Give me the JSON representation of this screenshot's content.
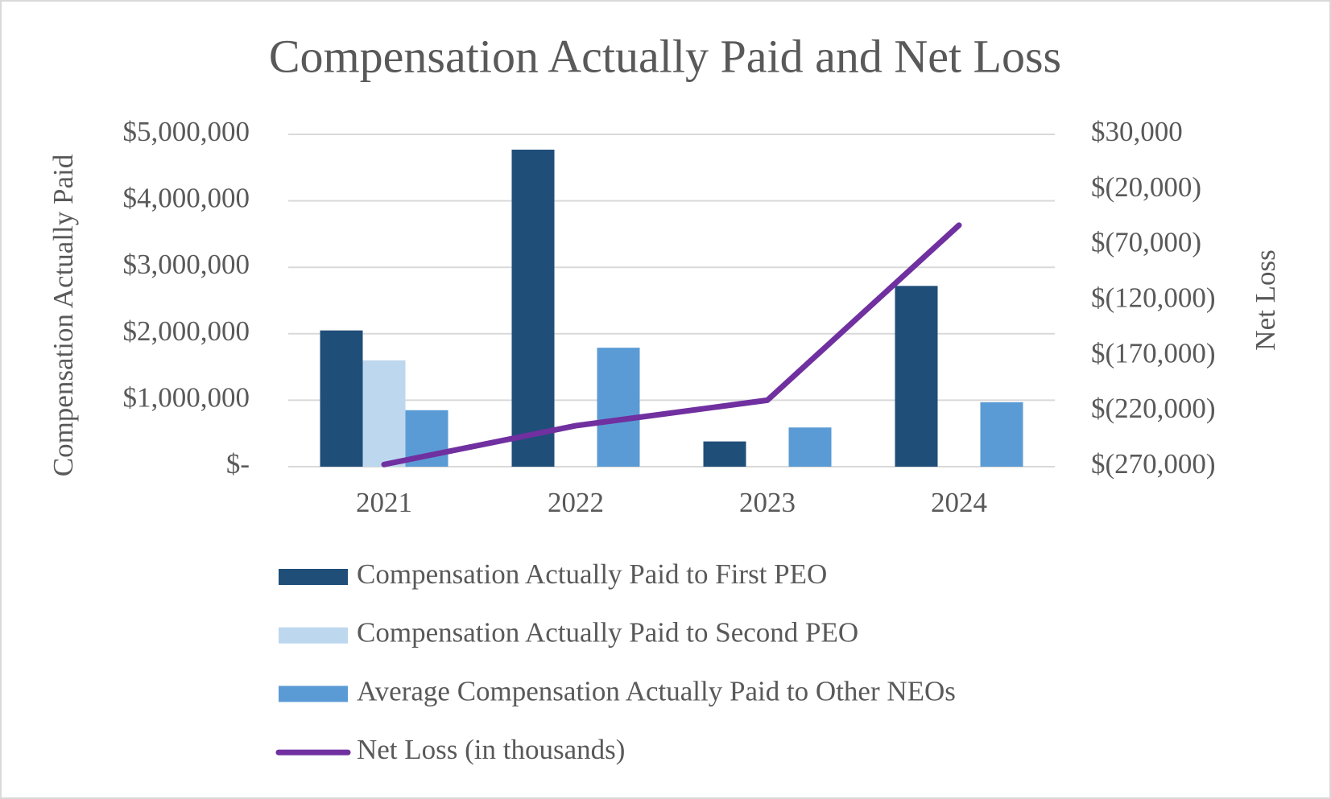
{
  "chart_data": {
    "type": "bar",
    "title": "Compensation Actually Paid and Net Loss",
    "ylabel": "Compensation Actually Paid",
    "y2label": "Net Loss",
    "categories": [
      "2021",
      "2022",
      "2023",
      "2024"
    ],
    "series": [
      {
        "name": "Compensation Actually Paid to First PEO",
        "color": "#1f4e79",
        "type": "bar",
        "values": [
          2050000,
          4770000,
          380000,
          2720000
        ]
      },
      {
        "name": "Compensation Actually Paid to Second PEO",
        "color": "#bdd7ee",
        "type": "bar",
        "values": [
          1600000,
          null,
          null,
          null
        ]
      },
      {
        "name": "Average Compensation Actually Paid to Other NEOs",
        "color": "#5b9bd5",
        "type": "bar",
        "values": [
          850000,
          1790000,
          590000,
          970000
        ]
      },
      {
        "name": "Net Loss (in thousands)",
        "color": "#7030a0",
        "type": "line",
        "axis": "y2",
        "values": [
          -268000,
          -233000,
          -210000,
          -52000
        ]
      }
    ],
    "ylim": [
      0,
      5000000
    ],
    "yticks": [
      {
        "value": 0,
        "label": "$-"
      },
      {
        "value": 1000000,
        "label": "$1,000,000"
      },
      {
        "value": 2000000,
        "label": "$2,000,000"
      },
      {
        "value": 3000000,
        "label": "$3,000,000"
      },
      {
        "value": 4000000,
        "label": "$4,000,000"
      },
      {
        "value": 5000000,
        "label": "$5,000,000"
      }
    ],
    "y2lim": [
      -270000,
      30000
    ],
    "y2ticks": [
      {
        "value": -270000,
        "label": "$(270,000)"
      },
      {
        "value": -220000,
        "label": "$(220,000)"
      },
      {
        "value": -170000,
        "label": "$(170,000)"
      },
      {
        "value": -120000,
        "label": "$(120,000)"
      },
      {
        "value": -70000,
        "label": "$(70,000)"
      },
      {
        "value": -20000,
        "label": "$(20,000)"
      },
      {
        "value": 30000,
        "label": "$30,000"
      }
    ],
    "grid": true,
    "legend": "bottom"
  }
}
